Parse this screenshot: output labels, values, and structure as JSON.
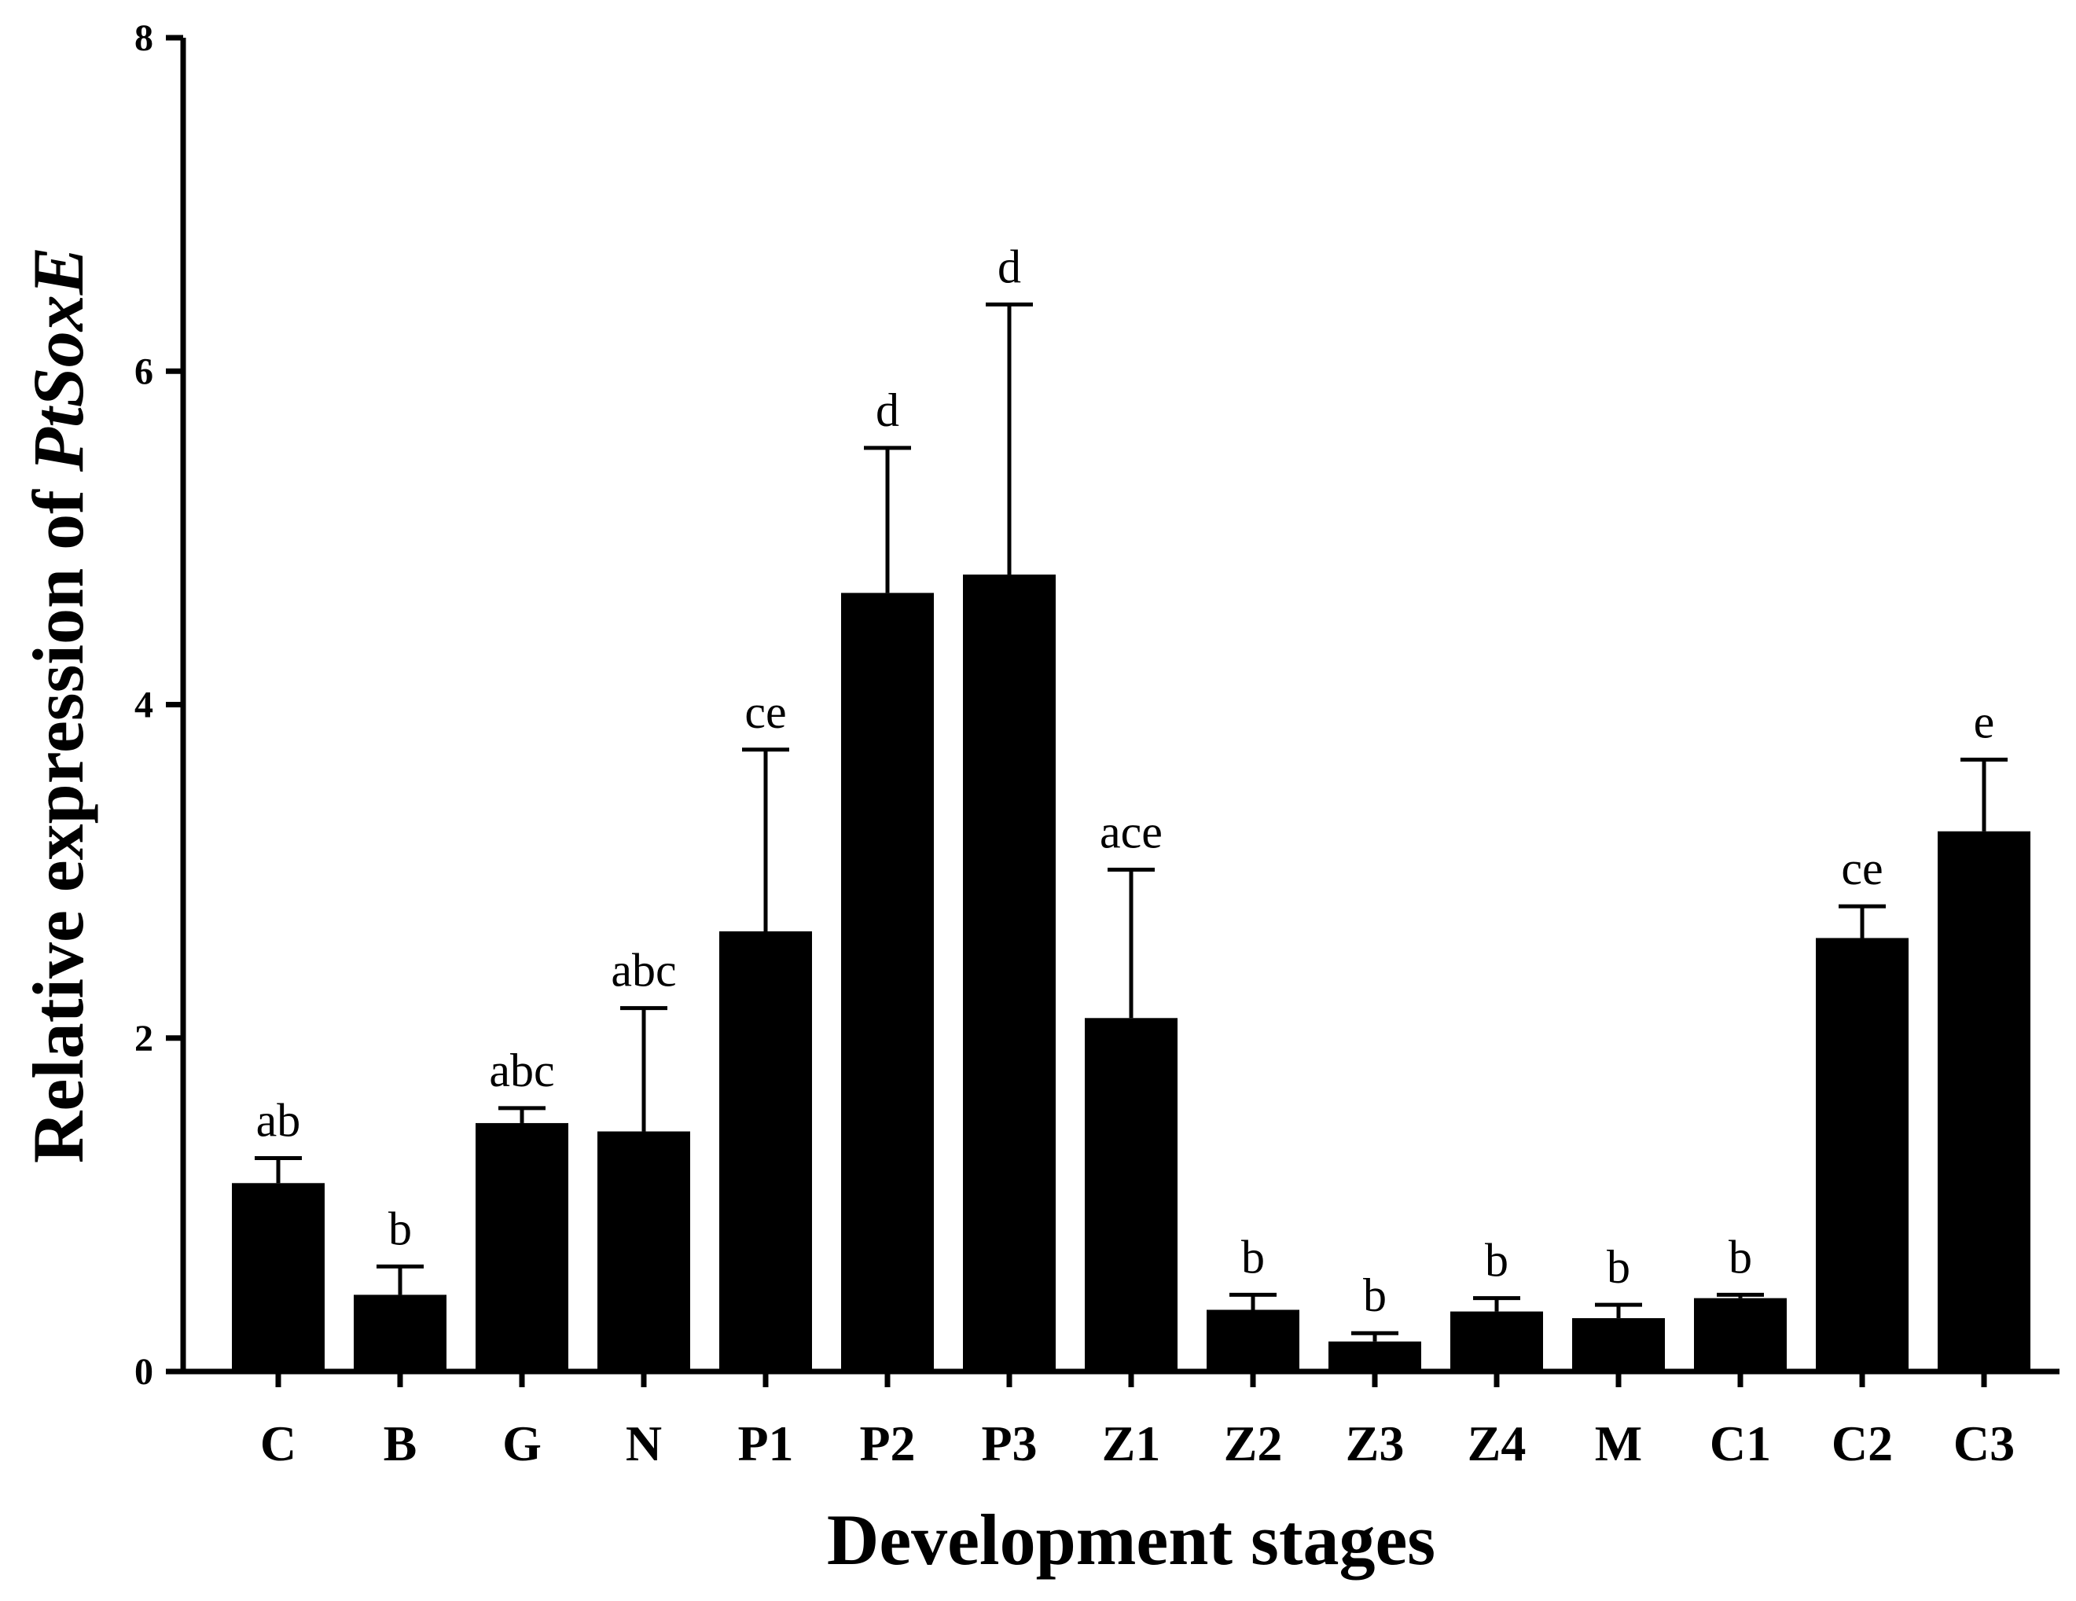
{
  "chart_data": {
    "type": "bar",
    "xlabel": "Development stages",
    "ylabel_prefix": "Relative expression of ",
    "ylabel_gene": "PtSoxE",
    "ylim": [
      0,
      8
    ],
    "yticks": [
      "0",
      "2",
      "4",
      "6",
      "8"
    ],
    "grid": false,
    "bar_color": "#000000",
    "categories": [
      "C",
      "B",
      "G",
      "N",
      "P1",
      "P2",
      "P3",
      "Z1",
      "Z2",
      "Z3",
      "Z4",
      "M",
      "C1",
      "C2",
      "C3"
    ],
    "values": [
      1.13,
      0.46,
      1.49,
      1.44,
      2.64,
      4.67,
      4.78,
      2.12,
      0.37,
      0.18,
      0.36,
      0.32,
      0.44,
      2.6,
      3.24
    ],
    "errors": [
      0.15,
      0.17,
      0.09,
      0.74,
      1.09,
      0.87,
      1.62,
      0.89,
      0.09,
      0.05,
      0.08,
      0.08,
      0.02,
      0.19,
      0.43
    ],
    "significance": [
      "ab",
      "b",
      "abc",
      "abc",
      "ce",
      "d",
      "d",
      "ace",
      "b",
      "b",
      "b",
      "b",
      "b",
      "ce",
      "e"
    ]
  }
}
